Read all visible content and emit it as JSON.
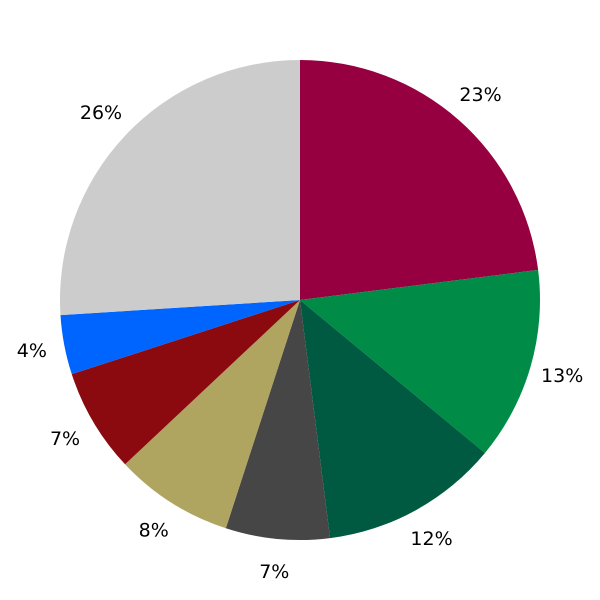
{
  "chart_data": {
    "type": "pie",
    "start": "top",
    "direction": "clockwise",
    "slices": [
      {
        "value": 23,
        "label": "23%",
        "color": "#960040"
      },
      {
        "value": 13,
        "label": "13%",
        "color": "#008c46"
      },
      {
        "value": 12,
        "label": "12%",
        "color": "#005a41"
      },
      {
        "value": 7,
        "label": "7%",
        "color": "#464646"
      },
      {
        "value": 8,
        "label": "8%",
        "color": "#b0a461"
      },
      {
        "value": 7,
        "label": "7%",
        "color": "#8b0a0f"
      },
      {
        "value": 4,
        "label": "4%",
        "color": "#0064ff"
      },
      {
        "value": 26,
        "label": "26%",
        "color": "#cccccc"
      }
    ]
  }
}
